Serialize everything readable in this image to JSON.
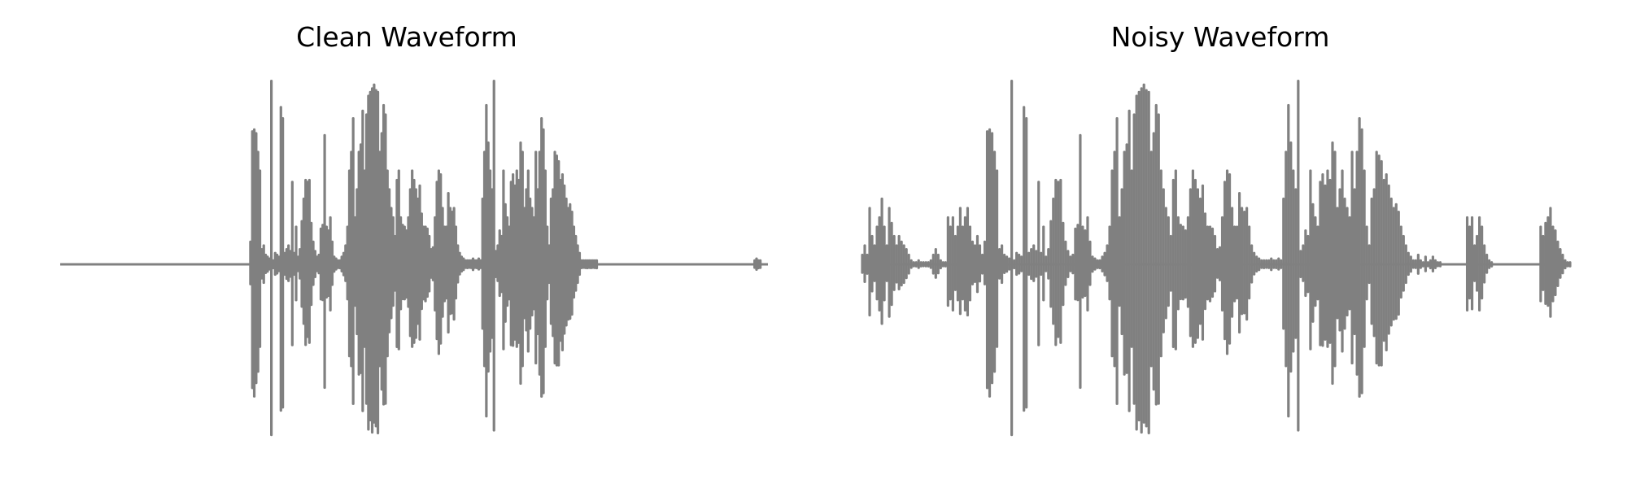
{
  "chart_data": [
    {
      "type": "line",
      "title": "Clean Waveform",
      "xlabel": "",
      "ylabel": "",
      "grid": false,
      "axes_visible": false,
      "line_color": "#808080",
      "series": [
        {
          "values": [
            0,
            0,
            0,
            0,
            0,
            0,
            0,
            0,
            0,
            0,
            0,
            0,
            0,
            0,
            0,
            0,
            0,
            0,
            0,
            0,
            0,
            0,
            0,
            0,
            0,
            0,
            0,
            0,
            0,
            0,
            0,
            0,
            0,
            0,
            0,
            0,
            0,
            0,
            0,
            0,
            0,
            0,
            0,
            0,
            0,
            0,
            0,
            0,
            0,
            0,
            0,
            0,
            0,
            0,
            0,
            0,
            0,
            0,
            0,
            0,
            0,
            0,
            0,
            0,
            0,
            0,
            0,
            0,
            0,
            0,
            0,
            0,
            0,
            0,
            0,
            0,
            0,
            0,
            0,
            0,
            0,
            0,
            0,
            0,
            0,
            0,
            0,
            0,
            0,
            0,
            0,
            0,
            0,
            0,
            0,
            0,
            0,
            0,
            0,
            0,
            0.12,
            0.71,
            0.72,
            0.7,
            0.6,
            0.5,
            0.08,
            0.1,
            0.05,
            0.04,
            0.03,
            0.98,
            0.02,
            0.06,
            0.05,
            0.04,
            0.84,
            0.78,
            0.06,
            0.08,
            0.1,
            0.07,
            0.44,
            0.06,
            0.2,
            0.04,
            0.08,
            0.23,
            0.35,
            0.45,
            0.44,
            0.45,
            0.22,
            0.12,
            0.07,
            0.04,
            0.05,
            0.19,
            0.21,
            0.69,
            0.2,
            0.18,
            0.25,
            0.12,
            0.04,
            0.03,
            0.02,
            0.02,
            0.04,
            0.06,
            0.1,
            0.2,
            0.5,
            0.6,
            0.78,
            0.25,
            0.4,
            0.6,
            0.64,
            0.82,
            0.5,
            0.8,
            0.9,
            0.92,
            0.94,
            0.96,
            0.93,
            0.92,
            0.6,
            0.7,
            0.85,
            0.8,
            0.5,
            0.4,
            0.3,
            0.25,
            0.15,
            0.45,
            0.5,
            0.25,
            0.21,
            0.2,
            0.18,
            0.25,
            0.4,
            0.5,
            0.45,
            0.4,
            0.35,
            0.42,
            0.27,
            0.2,
            0.2,
            0.19,
            0.15,
            0.08,
            0.09,
            0.25,
            0.44,
            0.5,
            0.48,
            0.3,
            0.2,
            0.2,
            0.38,
            0.3,
            0.28,
            0.3,
            0.2,
            0.1,
            0.06,
            0.04,
            0.03,
            0.02,
            0.02,
            0.02,
            0.02,
            0.03,
            0.02,
            0.02,
            0.03,
            0.02,
            0.35,
            0.6,
            0.85,
            0.65,
            0.5,
            0.4,
            0.98,
            0.07,
            0.1,
            0.18,
            0.15,
            0.5,
            0.32,
            0.25,
            0.2,
            0.44,
            0.48,
            0.42,
            0.5,
            0.45,
            0.65,
            0.6,
            0.3,
            0.4,
            0.5,
            0.35,
            0.3,
            0.25,
            0.6,
            0.4,
            0.6,
            0.78,
            0.72,
            0.5,
            0.2,
            0.1,
            0.35,
            0.4,
            0.6,
            0.58,
            0.55,
            0.45,
            0.48,
            0.42,
            0.35,
            0.3,
            0.32,
            0.28,
            0.2,
            0.15,
            0.1,
            0.06,
            0.02,
            0.02,
            0.02,
            0.02,
            0.02,
            0.02,
            0.02,
            0.02,
            0.02,
            0,
            0,
            0,
            0,
            0,
            0,
            0,
            0,
            0,
            0,
            0,
            0,
            0,
            0,
            0,
            0,
            0,
            0,
            0,
            0,
            0,
            0,
            0,
            0,
            0,
            0,
            0,
            0,
            0,
            0,
            0,
            0,
            0,
            0,
            0,
            0,
            0,
            0,
            0,
            0,
            0,
            0,
            0,
            0,
            0,
            0,
            0,
            0,
            0,
            0,
            0,
            0,
            0,
            0,
            0,
            0,
            0,
            0,
            0,
            0,
            0,
            0,
            0,
            0,
            0,
            0,
            0,
            0,
            0,
            0,
            0,
            0,
            0,
            0,
            0,
            0,
            0,
            0,
            0,
            0,
            0,
            0,
            0.02,
            0.03,
            0.02,
            0.02,
            0,
            0,
            0,
            0
          ]
        }
      ]
    },
    {
      "type": "line",
      "title": "Noisy Waveform",
      "xlabel": "",
      "ylabel": "",
      "grid": false,
      "axes_visible": false,
      "line_color": "#808080",
      "series": [
        {
          "values": [
            0.05,
            0.1,
            0.05,
            0.3,
            0.15,
            0.1,
            0.2,
            0.25,
            0.35,
            0.2,
            0.1,
            0.3,
            0.22,
            0.15,
            0.1,
            0.15,
            0.12,
            0.1,
            0.08,
            0.05,
            0.02,
            0.01,
            0.01,
            0.02,
            0.01,
            0.01,
            0.01,
            0.01,
            0.02,
            0.05,
            0.08,
            0.05,
            0.02,
            0.01,
            0.01,
            0.25,
            0.2,
            0.25,
            0.15,
            0.2,
            0.3,
            0.2,
            0.25,
            0.3,
            0.2,
            0.12,
            0.1,
            0.15,
            0.1,
            0.05,
            0.12,
            0.71,
            0.72,
            0.7,
            0.6,
            0.5,
            0.08,
            0.1,
            0.05,
            0.04,
            0.03,
            0.98,
            0.02,
            0.06,
            0.05,
            0.04,
            0.84,
            0.78,
            0.06,
            0.08,
            0.1,
            0.07,
            0.44,
            0.06,
            0.2,
            0.04,
            0.08,
            0.23,
            0.35,
            0.45,
            0.44,
            0.45,
            0.22,
            0.12,
            0.07,
            0.04,
            0.05,
            0.19,
            0.21,
            0.69,
            0.2,
            0.18,
            0.25,
            0.12,
            0.04,
            0.03,
            0.02,
            0.02,
            0.04,
            0.06,
            0.1,
            0.2,
            0.5,
            0.6,
            0.78,
            0.25,
            0.4,
            0.6,
            0.64,
            0.82,
            0.5,
            0.8,
            0.9,
            0.92,
            0.94,
            0.96,
            0.93,
            0.92,
            0.6,
            0.7,
            0.85,
            0.8,
            0.5,
            0.4,
            0.3,
            0.25,
            0.15,
            0.45,
            0.5,
            0.25,
            0.21,
            0.2,
            0.18,
            0.25,
            0.4,
            0.5,
            0.45,
            0.4,
            0.35,
            0.42,
            0.27,
            0.2,
            0.2,
            0.19,
            0.15,
            0.08,
            0.09,
            0.25,
            0.44,
            0.5,
            0.48,
            0.3,
            0.2,
            0.2,
            0.38,
            0.3,
            0.28,
            0.3,
            0.2,
            0.1,
            0.06,
            0.04,
            0.03,
            0.02,
            0.02,
            0.02,
            0.02,
            0.03,
            0.02,
            0.02,
            0.03,
            0.02,
            0.35,
            0.6,
            0.85,
            0.65,
            0.5,
            0.4,
            0.98,
            0.07,
            0.1,
            0.18,
            0.15,
            0.5,
            0.32,
            0.25,
            0.2,
            0.44,
            0.48,
            0.42,
            0.5,
            0.45,
            0.65,
            0.6,
            0.3,
            0.4,
            0.5,
            0.35,
            0.3,
            0.25,
            0.6,
            0.4,
            0.6,
            0.78,
            0.72,
            0.5,
            0.2,
            0.1,
            0.35,
            0.4,
            0.6,
            0.58,
            0.55,
            0.45,
            0.48,
            0.42,
            0.35,
            0.3,
            0.32,
            0.28,
            0.2,
            0.15,
            0.1,
            0.06,
            0.04,
            0.02,
            0.02,
            0.05,
            0.02,
            0.01,
            0.04,
            0.01,
            0.02,
            0.04,
            0.02,
            0.01,
            0.01,
            0,
            0,
            0,
            0,
            0,
            0,
            0,
            0,
            0,
            0,
            0.25,
            0.2,
            0.25,
            0.1,
            0.15,
            0.25,
            0.2,
            0.1,
            0.05,
            0.02,
            0.01,
            0,
            0,
            0,
            0,
            0,
            0,
            0,
            0,
            0,
            0,
            0,
            0,
            0,
            0,
            0,
            0,
            0,
            0,
            0,
            0.2,
            0.15,
            0.22,
            0.25,
            0.3,
            0.2,
            0.18,
            0.12,
            0.08,
            0.05,
            0.02,
            0.01,
            0.01
          ]
        }
      ]
    }
  ]
}
